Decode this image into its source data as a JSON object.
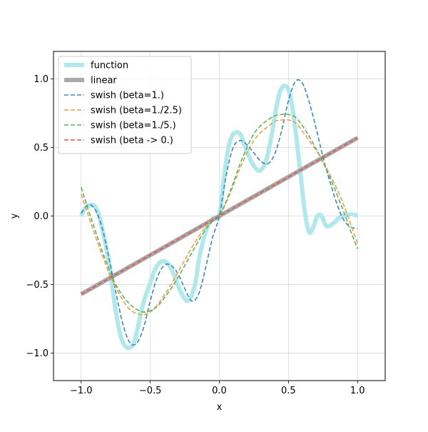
{
  "chart_data": {
    "type": "line",
    "title": "",
    "xlabel": "x",
    "ylabel": "y",
    "xlim": [
      -1.2,
      1.2
    ],
    "ylim": [
      -1.2,
      1.2
    ],
    "x_ticks": [
      -1.0,
      -0.5,
      0.0,
      0.5,
      1.0
    ],
    "x_tick_labels": [
      "−1.0",
      "−0.5",
      "0.0",
      "0.5",
      "1.0"
    ],
    "y_ticks": [
      -1.0,
      -0.5,
      0.0,
      0.5,
      1.0
    ],
    "y_tick_labels": [
      "−1.0",
      "−0.5",
      "0.0",
      "0.5",
      "1.0"
    ],
    "grid": true,
    "legend_placement": "upper-left",
    "series": [
      {
        "name": "function",
        "color": "#b0e8ec",
        "style": "thick-solid",
        "x": [
          -1.0,
          -0.97,
          -0.93,
          -0.9,
          -0.87,
          -0.84,
          -0.8,
          -0.77,
          -0.74,
          -0.71,
          -0.68,
          -0.65,
          -0.62,
          -0.6,
          -0.57,
          -0.54,
          -0.5,
          -0.47,
          -0.44,
          -0.41,
          -0.38,
          -0.35,
          -0.32,
          -0.29,
          -0.26,
          -0.23,
          -0.2,
          -0.17,
          -0.15,
          -0.12,
          -0.09,
          -0.06,
          -0.03,
          0.0,
          0.03,
          0.06,
          0.09,
          0.12,
          0.15,
          0.17,
          0.2,
          0.23,
          0.26,
          0.29,
          0.32,
          0.35,
          0.38,
          0.41,
          0.44,
          0.47,
          0.5,
          0.53,
          0.56,
          0.59,
          0.62,
          0.65,
          0.68,
          0.71,
          0.74,
          0.77,
          0.8,
          0.84,
          0.87,
          0.9,
          0.93,
          0.97,
          1.0
        ],
        "y": [
          0.0,
          0.06,
          0.08,
          0.07,
          0.0,
          -0.13,
          -0.33,
          -0.55,
          -0.75,
          -0.89,
          -0.95,
          -0.96,
          -0.93,
          -0.86,
          -0.72,
          -0.6,
          -0.49,
          -0.4,
          -0.35,
          -0.33,
          -0.34,
          -0.38,
          -0.45,
          -0.53,
          -0.59,
          -0.62,
          -0.58,
          -0.47,
          -0.33,
          -0.19,
          -0.09,
          -0.03,
          -0.01,
          0.0,
          0.25,
          0.47,
          0.58,
          0.61,
          0.6,
          0.55,
          0.47,
          0.4,
          0.35,
          0.33,
          0.36,
          0.45,
          0.6,
          0.78,
          0.91,
          0.95,
          0.92,
          0.78,
          0.55,
          0.28,
          0.02,
          -0.12,
          -0.08,
          0.0,
          0.0,
          -0.07,
          -0.07,
          -0.04,
          -0.01,
          0.0,
          0.01,
          0.01,
          0.0
        ]
      },
      {
        "name": "linear",
        "color": "#a9a9a9",
        "style": "thick-solid",
        "x": [
          -1.0,
          1.0
        ],
        "y": [
          -0.57,
          0.57
        ]
      },
      {
        "name": "swish (beta=1.)",
        "color": "#3f86bd",
        "style": "dashed",
        "x": [
          -1.0,
          -0.95,
          -0.9,
          -0.85,
          -0.8,
          -0.75,
          -0.7,
          -0.65,
          -0.6,
          -0.55,
          -0.5,
          -0.45,
          -0.4,
          -0.35,
          -0.3,
          -0.25,
          -0.2,
          -0.15,
          -0.1,
          -0.05,
          0.0,
          0.05,
          0.1,
          0.15,
          0.2,
          0.25,
          0.3,
          0.35,
          0.4,
          0.45,
          0.5,
          0.55,
          0.6,
          0.65,
          0.7,
          0.75,
          0.8,
          0.85,
          0.9,
          0.95,
          1.0
        ],
        "y": [
          0.02,
          0.08,
          0.05,
          -0.08,
          -0.3,
          -0.55,
          -0.78,
          -0.92,
          -0.93,
          -0.82,
          -0.62,
          -0.45,
          -0.36,
          -0.36,
          -0.42,
          -0.53,
          -0.62,
          -0.57,
          -0.38,
          -0.16,
          0.0,
          0.3,
          0.5,
          0.55,
          0.52,
          0.46,
          0.4,
          0.38,
          0.45,
          0.62,
          0.84,
          0.98,
          0.97,
          0.83,
          0.64,
          0.43,
          0.25,
          0.09,
          -0.03,
          -0.08,
          -0.09
        ]
      },
      {
        "name": "swish (beta=1./2.5)",
        "color": "#f29a4e",
        "style": "dashed",
        "x": [
          -1.0,
          -0.95,
          -0.9,
          -0.85,
          -0.8,
          -0.75,
          -0.7,
          -0.65,
          -0.6,
          -0.55,
          -0.5,
          -0.45,
          -0.4,
          -0.35,
          -0.3,
          -0.25,
          -0.2,
          -0.15,
          -0.1,
          -0.05,
          0.0,
          0.05,
          0.1,
          0.15,
          0.2,
          0.25,
          0.3,
          0.35,
          0.4,
          0.45,
          0.5,
          0.55,
          0.6,
          0.65,
          0.7,
          0.75,
          0.8,
          0.85,
          0.9,
          0.95,
          1.0
        ],
        "y": [
          0.16,
          0.01,
          -0.14,
          -0.28,
          -0.41,
          -0.52,
          -0.61,
          -0.68,
          -0.71,
          -0.72,
          -0.7,
          -0.65,
          -0.58,
          -0.5,
          -0.41,
          -0.32,
          -0.23,
          -0.15,
          -0.08,
          -0.03,
          0.0,
          0.1,
          0.22,
          0.35,
          0.46,
          0.55,
          0.61,
          0.65,
          0.69,
          0.7,
          0.7,
          0.68,
          0.62,
          0.55,
          0.48,
          0.4,
          0.3,
          0.2,
          0.08,
          -0.06,
          -0.2
        ]
      },
      {
        "name": "swish (beta=1./5.)",
        "color": "#5ab55a",
        "style": "dashed",
        "x": [
          -1.0,
          -0.95,
          -0.9,
          -0.85,
          -0.8,
          -0.75,
          -0.7,
          -0.65,
          -0.6,
          -0.55,
          -0.5,
          -0.45,
          -0.4,
          -0.35,
          -0.3,
          -0.25,
          -0.2,
          -0.15,
          -0.1,
          -0.05,
          0.0,
          0.05,
          0.1,
          0.15,
          0.2,
          0.25,
          0.3,
          0.35,
          0.4,
          0.45,
          0.5,
          0.55,
          0.6,
          0.65,
          0.7,
          0.75,
          0.8,
          0.85,
          0.9,
          0.95,
          1.0
        ],
        "y": [
          0.21,
          0.05,
          -0.1,
          -0.25,
          -0.38,
          -0.5,
          -0.58,
          -0.64,
          -0.68,
          -0.7,
          -0.69,
          -0.66,
          -0.6,
          -0.53,
          -0.45,
          -0.36,
          -0.27,
          -0.18,
          -0.1,
          -0.04,
          0.0,
          0.11,
          0.24,
          0.38,
          0.5,
          0.6,
          0.66,
          0.7,
          0.73,
          0.74,
          0.74,
          0.72,
          0.66,
          0.58,
          0.49,
          0.39,
          0.28,
          0.16,
          0.03,
          -0.11,
          -0.24
        ]
      },
      {
        "name": "swish (beta -> 0.)",
        "color": "#e0534e",
        "style": "dashed",
        "x": [
          -1.0,
          1.0
        ],
        "y": [
          -0.57,
          0.57
        ]
      }
    ]
  }
}
